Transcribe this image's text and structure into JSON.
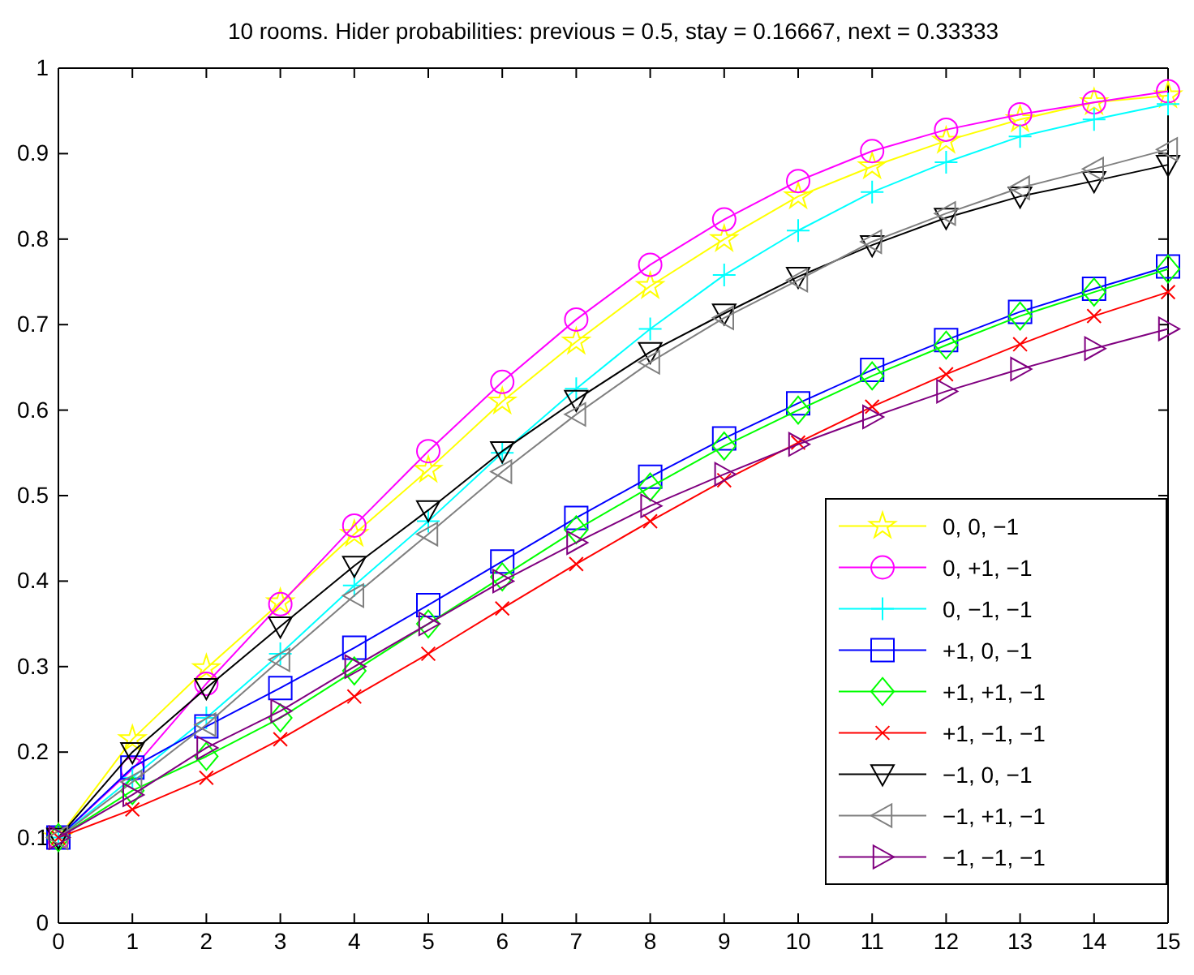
{
  "chart_data": {
    "type": "line",
    "title": "10 rooms. Hider probabilities: previous = 0.5, stay = 0.16667, next = 0.33333",
    "x": [
      0,
      1,
      2,
      3,
      4,
      5,
      6,
      7,
      8,
      9,
      10,
      11,
      12,
      13,
      14,
      15
    ],
    "xlim": [
      0,
      15
    ],
    "xticks": [
      0,
      1,
      2,
      3,
      4,
      5,
      6,
      7,
      8,
      9,
      10,
      11,
      12,
      13,
      14,
      15
    ],
    "ylim": [
      0,
      1
    ],
    "yticks": [
      0,
      0.1,
      0.2,
      0.3,
      0.4,
      0.5,
      0.6,
      0.7,
      0.8,
      0.9,
      1
    ],
    "grid": false,
    "legend": "bottom right",
    "series": [
      {
        "name": "0, 0, −1",
        "color": "#ffff00",
        "marker": "star",
        "values": [
          0.1,
          0.215,
          0.298,
          0.375,
          0.455,
          0.53,
          0.61,
          0.68,
          0.745,
          0.8,
          0.85,
          0.885,
          0.915,
          0.94,
          0.96,
          0.968
        ]
      },
      {
        "name": "0, +1, −1",
        "color": "#ff00ff",
        "marker": "circle",
        "values": [
          0.1,
          0.18,
          0.28,
          0.373,
          0.465,
          0.552,
          0.633,
          0.706,
          0.77,
          0.823,
          0.868,
          0.903,
          0.928,
          0.946,
          0.96,
          0.973
        ]
      },
      {
        "name": "0, −1, −1",
        "color": "#00ffff",
        "marker": "plus",
        "values": [
          0.1,
          0.17,
          0.24,
          0.315,
          0.395,
          0.47,
          0.55,
          0.625,
          0.695,
          0.758,
          0.81,
          0.855,
          0.89,
          0.92,
          0.94,
          0.958
        ]
      },
      {
        "name": "+1, 0, −1",
        "color": "#0000ff",
        "marker": "square",
        "values": [
          0.1,
          0.182,
          0.23,
          0.275,
          0.322,
          0.372,
          0.423,
          0.474,
          0.522,
          0.567,
          0.608,
          0.647,
          0.682,
          0.715,
          0.742,
          0.768
        ]
      },
      {
        "name": "+1, +1, −1",
        "color": "#00ff00",
        "marker": "diamond",
        "values": [
          0.1,
          0.155,
          0.195,
          0.24,
          0.295,
          0.35,
          0.405,
          0.46,
          0.51,
          0.558,
          0.6,
          0.64,
          0.676,
          0.71,
          0.738,
          0.765
        ]
      },
      {
        "name": "+1, −1, −1",
        "color": "#ff0000",
        "marker": "cross",
        "values": [
          0.1,
          0.133,
          0.17,
          0.215,
          0.265,
          0.315,
          0.368,
          0.42,
          0.47,
          0.518,
          0.562,
          0.604,
          0.642,
          0.677,
          0.71,
          0.738
        ]
      },
      {
        "name": "−1, 0, −1",
        "color": "#000000",
        "marker": "triangle-down",
        "values": [
          0.1,
          0.2,
          0.275,
          0.347,
          0.418,
          0.483,
          0.552,
          0.612,
          0.668,
          0.713,
          0.756,
          0.793,
          0.825,
          0.85,
          0.868,
          0.887
        ]
      },
      {
        "name": "−1, +1, −1",
        "color": "#808080",
        "marker": "triangle-left",
        "values": [
          0.1,
          0.165,
          0.232,
          0.308,
          0.383,
          0.455,
          0.528,
          0.595,
          0.656,
          0.708,
          0.752,
          0.797,
          0.83,
          0.86,
          0.882,
          0.905
        ]
      },
      {
        "name": "−1, −1, −1",
        "color": "#800080",
        "marker": "triangle-right",
        "values": [
          0.1,
          0.15,
          0.205,
          0.248,
          0.3,
          0.35,
          0.4,
          0.445,
          0.488,
          0.525,
          0.56,
          0.592,
          0.622,
          0.648,
          0.672,
          0.695
        ]
      }
    ]
  }
}
